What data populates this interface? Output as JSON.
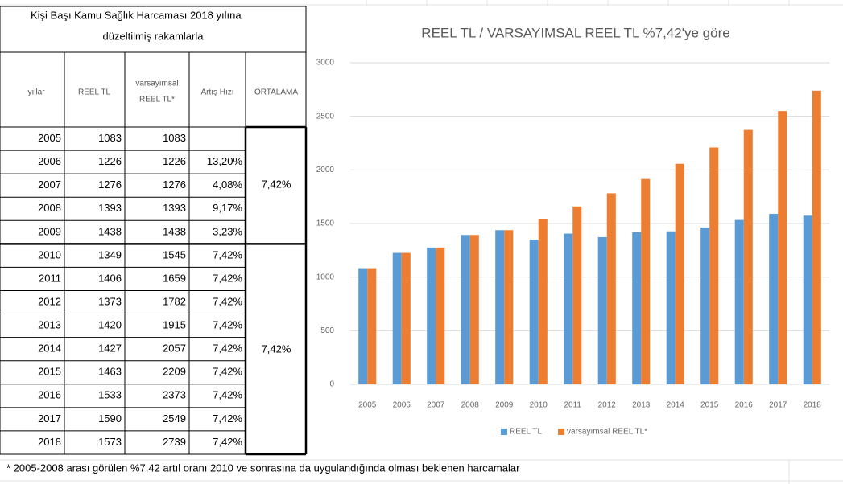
{
  "table": {
    "title": [
      "Kişi Başı Kamu Sağlık Harcaması 2018 yılına",
      "düzeltilmiş rakamlarla"
    ],
    "headers": [
      "yıllar",
      "REEL TL",
      [
        "varsayımsal",
        "REEL TL*"
      ],
      "Artış Hızı",
      "ORTALAMA"
    ],
    "rows": [
      [
        2005,
        1083,
        1083,
        null
      ],
      [
        2006,
        1226,
        1226,
        "13,20%"
      ],
      [
        2007,
        1276,
        1276,
        "4,08%"
      ],
      [
        2008,
        1393,
        1393,
        "9,17%"
      ],
      [
        2009,
        1438,
        1438,
        "3,23%"
      ],
      [
        2010,
        1349,
        1545,
        "7,42%"
      ],
      [
        2011,
        1406,
        1659,
        "7,42%"
      ],
      [
        2012,
        1373,
        1782,
        "7,42%"
      ],
      [
        2013,
        1420,
        1915,
        "7,42%"
      ],
      [
        2014,
        1427,
        2057,
        "7,42%"
      ],
      [
        2015,
        1463,
        2209,
        "7,42%"
      ],
      [
        2016,
        1533,
        2373,
        "7,42%"
      ],
      [
        2017,
        1590,
        2549,
        "7,42%"
      ],
      [
        2018,
        1573,
        2739,
        "7,42%"
      ]
    ],
    "averages": [
      "7,42%",
      "7,42%"
    ]
  },
  "footnote": "* 2005-2008 arası görülen %7,42 artıl oranı 2010 ve sonrasına da uygulandığında olması beklenen harcamalar",
  "chart_data": {
    "type": "bar",
    "title": "REEL TL / VARSAYIMSAL REEL TL %7,42'ye göre",
    "categories": [
      "2005",
      "2006",
      "2007",
      "2008",
      "2009",
      "2010",
      "2011",
      "2012",
      "2013",
      "2014",
      "2015",
      "2016",
      "2017",
      "2018"
    ],
    "series": [
      {
        "name": "REEL TL",
        "color": "#5b9bd5",
        "values": [
          1083,
          1226,
          1276,
          1393,
          1438,
          1349,
          1406,
          1373,
          1420,
          1427,
          1463,
          1533,
          1590,
          1573
        ]
      },
      {
        "name": "varsayımsal REEL TL*",
        "color": "#ed7d31",
        "values": [
          1083,
          1226,
          1276,
          1393,
          1438,
          1545,
          1659,
          1782,
          1915,
          2057,
          2209,
          2373,
          2549,
          2739
        ]
      }
    ],
    "ylim": [
      0,
      3000
    ],
    "yticks": [
      0,
      500,
      1000,
      1500,
      2000,
      2500,
      3000
    ],
    "grid": true,
    "legend": "bottom"
  }
}
